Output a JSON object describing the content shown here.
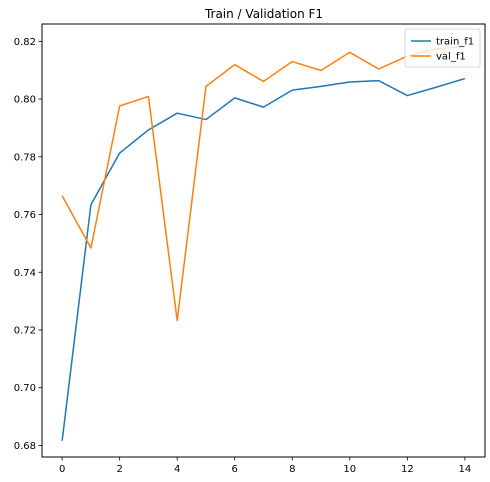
{
  "chart_data": {
    "type": "line",
    "title": "Train / Validation F1",
    "xlabel": "",
    "ylabel": "",
    "x": [
      0,
      1,
      2,
      3,
      4,
      5,
      6,
      7,
      8,
      9,
      10,
      11,
      12,
      13,
      14
    ],
    "series": [
      {
        "name": "train_f1",
        "color": "#1f77b4",
        "values": [
          0.6816,
          0.7634,
          0.7813,
          0.7893,
          0.7951,
          0.7929,
          0.8004,
          0.7972,
          0.8031,
          0.8044,
          0.8059,
          0.8064,
          0.8012,
          0.8041,
          0.8071
        ]
      },
      {
        "name": "val_f1",
        "color": "#ff7f0e",
        "values": [
          0.7665,
          0.7484,
          0.7976,
          0.8009,
          0.7233,
          0.8044,
          0.8119,
          0.8061,
          0.813,
          0.8099,
          0.8162,
          0.8104,
          0.8149,
          0.8174,
          0.8182
        ]
      }
    ],
    "xlim": [
      -0.7,
      14.7
    ],
    "ylim": [
      0.676,
      0.826
    ],
    "xticks": [
      0,
      2,
      4,
      6,
      8,
      10,
      12,
      14
    ],
    "yticks": [
      0.68,
      0.7,
      0.72,
      0.74,
      0.76,
      0.78,
      0.8,
      0.82
    ],
    "ytick_labels": [
      "0.68",
      "0.70",
      "0.72",
      "0.74",
      "0.76",
      "0.78",
      "0.80",
      "0.82"
    ],
    "grid": false,
    "legend": "top-right"
  }
}
